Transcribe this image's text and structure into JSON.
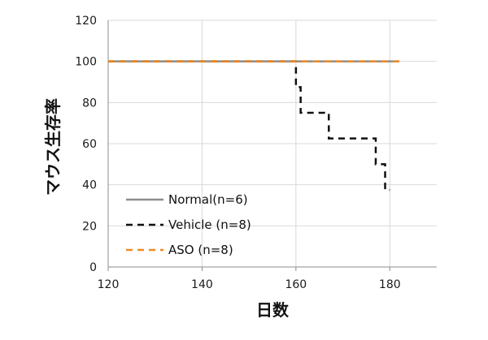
{
  "chart_data": {
    "type": "line",
    "step": true,
    "title": "",
    "xlabel": "日数",
    "ylabel": "マウス生存率",
    "xlim": [
      120,
      190
    ],
    "ylim": [
      0,
      120
    ],
    "x_ticks": [
      120,
      140,
      160,
      180
    ],
    "y_ticks": [
      0,
      20,
      40,
      60,
      80,
      100,
      120
    ],
    "grid": true,
    "legend_position": "bottom-left",
    "series": [
      {
        "name": "Normal(n=6)",
        "color": "#8c8c8c",
        "dash": "solid",
        "x": [
          120,
          182
        ],
        "y": [
          100,
          100
        ]
      },
      {
        "name": "Vehicle (n=8)",
        "color": "#111111",
        "dash": "dashed",
        "x": [
          120,
          160,
          161,
          167,
          177,
          179,
          180
        ],
        "y": [
          100,
          87.5,
          75,
          62.5,
          50,
          37.5,
          37.5
        ]
      },
      {
        "name": "ASO (n=8)",
        "color": "#f08a24",
        "dash": "dashed",
        "x": [
          120,
          182
        ],
        "y": [
          100,
          100
        ]
      }
    ]
  }
}
